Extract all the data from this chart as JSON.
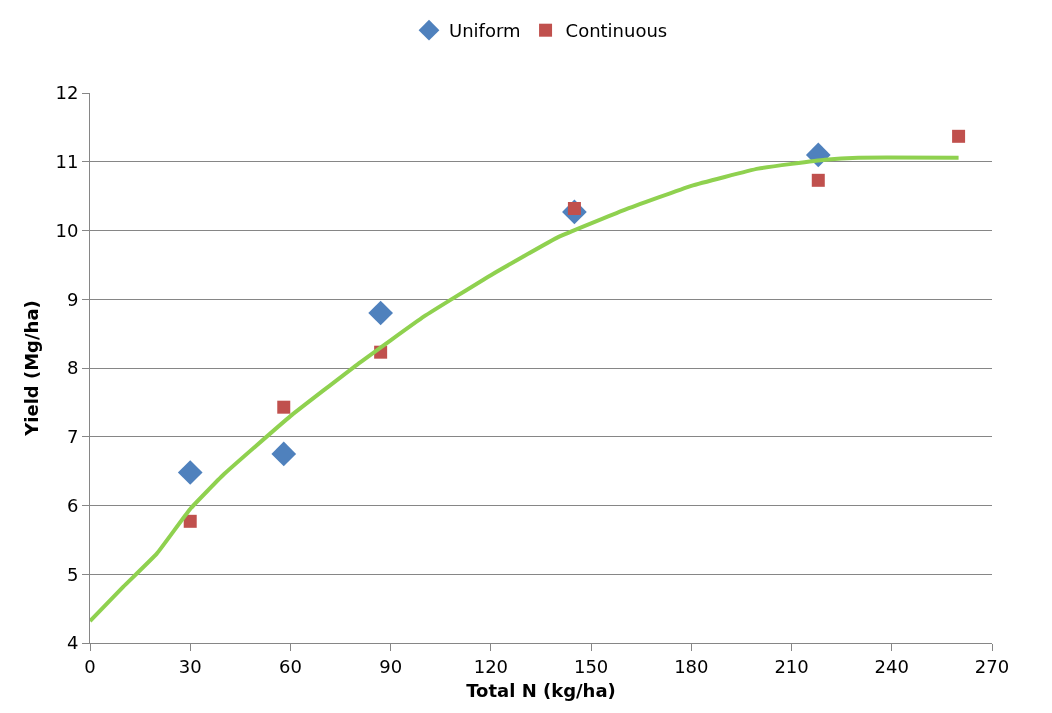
{
  "chart_data": {
    "type": "scatter",
    "xlabel": "Total N (kg/ha)",
    "ylabel": "Yield (Mg/ha)",
    "xlim": [
      0,
      270
    ],
    "xticks": [
      0,
      30,
      60,
      90,
      120,
      150,
      180,
      210,
      240,
      270
    ],
    "ylim": [
      4,
      12
    ],
    "yticks": [
      4,
      5,
      6,
      7,
      8,
      9,
      10,
      11,
      12
    ],
    "grid": "y",
    "legend": "top",
    "series": [
      {
        "name": "Uniform",
        "color": "#4f81bd",
        "marker": "diamond",
        "x": [
          30,
          58,
          87,
          145,
          218
        ],
        "values": [
          6.48,
          6.75,
          8.8,
          10.27,
          11.1
        ]
      },
      {
        "name": "Continuous",
        "color": "#c0504d",
        "marker": "square",
        "x": [
          30,
          58,
          87,
          145,
          218,
          260
        ],
        "values": [
          5.77,
          7.43,
          8.23,
          10.32,
          10.73,
          11.37
        ]
      },
      {
        "type": "line",
        "color": "#8fd14f",
        "marker": "none",
        "x": [
          0,
          10,
          20,
          30,
          40,
          60,
          80,
          100,
          120,
          140,
          160,
          180,
          200,
          220,
          230,
          260
        ],
        "values": [
          4.32,
          4.82,
          5.3,
          5.95,
          6.45,
          7.3,
          8.05,
          8.75,
          9.35,
          9.9,
          10.3,
          10.65,
          10.9,
          11.03,
          11.06,
          11.06
        ]
      }
    ]
  }
}
